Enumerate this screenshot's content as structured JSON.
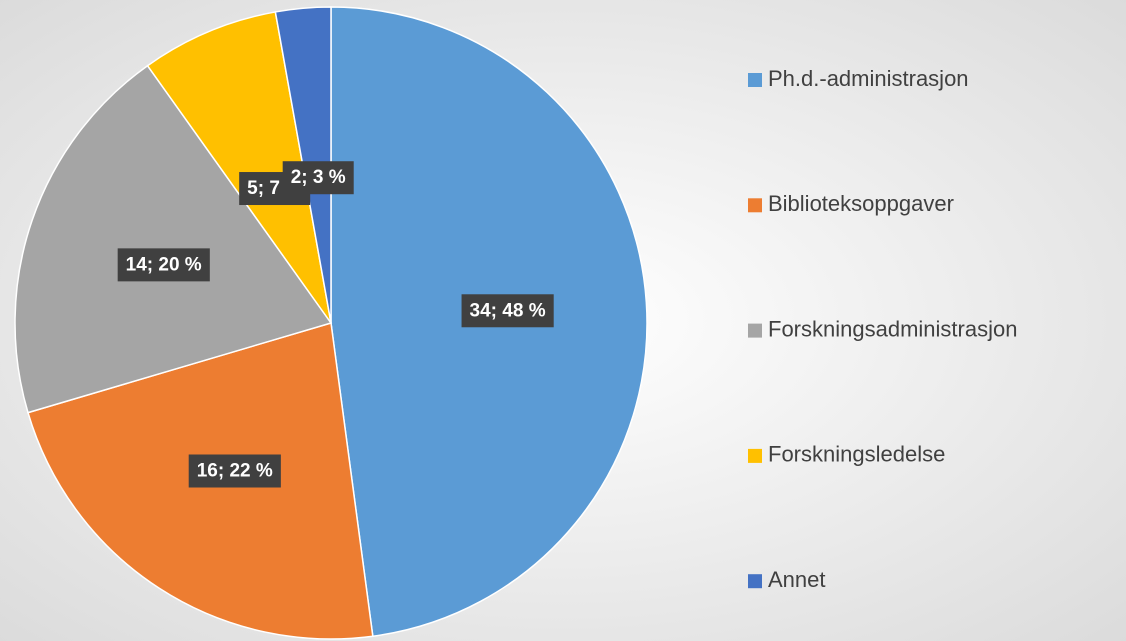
{
  "chart_data": {
    "type": "pie",
    "categories": [
      "Ph.d.-administrasjon",
      "Biblioteksoppgaver",
      "Forskningsadministrasjon",
      "Forskningsledelse",
      "Annet"
    ],
    "values": [
      34,
      16,
      14,
      5,
      2
    ],
    "value_labels": [
      "34; 48 %",
      "16; 22 %",
      "14; 20 %",
      "5; 7 %",
      "2; 3 %"
    ],
    "colors": [
      "#5b9bd5",
      "#ed7d31",
      "#a5a5a5",
      "#ffc000",
      "#4472c4"
    ],
    "legend": "right"
  }
}
